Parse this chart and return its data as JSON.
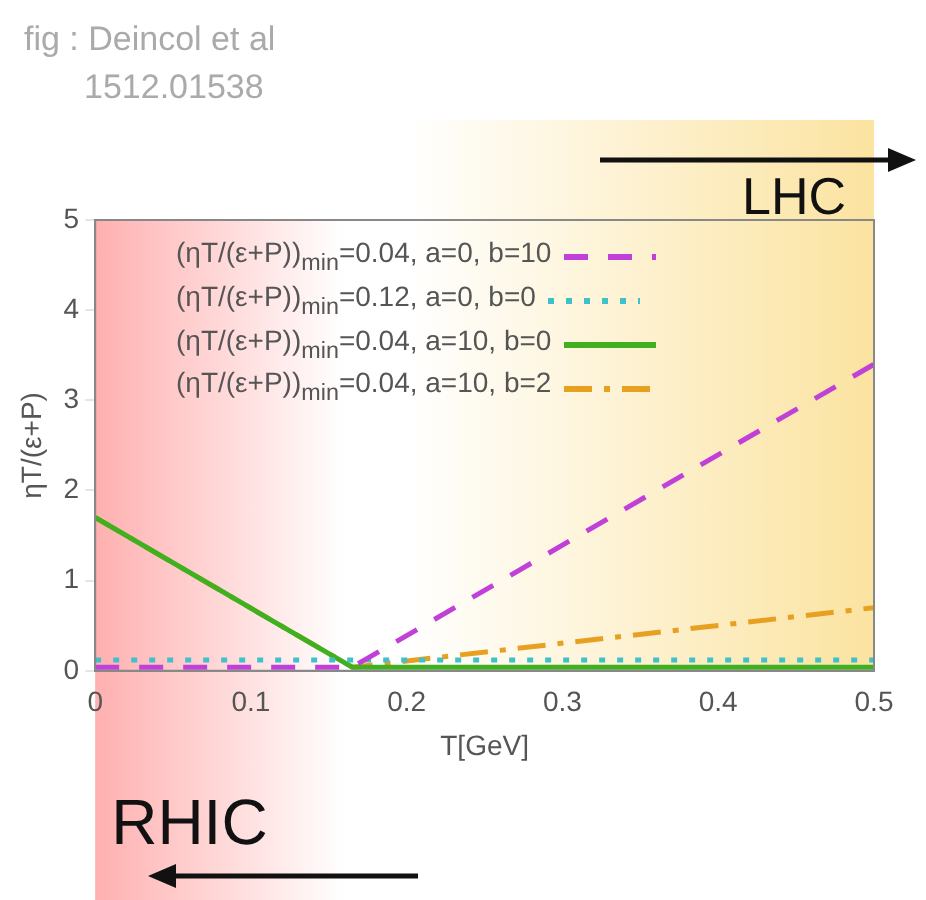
{
  "chart_data": {
    "type": "line",
    "xlabel": "T[GeV]",
    "ylabel": "ηT/(ε+P)",
    "annotations": [
      "fig : Deincol et al",
      "1512.01538"
    ],
    "xlim": [
      0,
      0.5
    ],
    "xticks": [
      0,
      0.1,
      0.2,
      0.3,
      0.4,
      0.5
    ],
    "ylim": [
      0,
      5
    ],
    "yticks": [
      0,
      1,
      2,
      3,
      4,
      5
    ],
    "grid": false,
    "legend": "top",
    "marker": "none",
    "bands": [
      {
        "axis": "x",
        "from": 0,
        "to": 0.16,
        "label": "RHIC",
        "color": "#ffb0b0"
      },
      {
        "axis": "x",
        "from": 0.2,
        "to": 0.5,
        "label": "LHC",
        "color": "#fbe3a0"
      }
    ],
    "series": [
      {
        "name": "(ηT/(ε+P))$_{min}$=0.04, a=0, b=10",
        "color": "#c040d8",
        "line_style": "dashed",
        "x": [
          0,
          0.165,
          0.5
        ],
        "values": [
          0.04,
          0.04,
          3.4
        ]
      },
      {
        "name": "(ηT/(ε+P))$_{min}$=0.12, a=0, b=0",
        "color": "#40c0c8",
        "line_style": "dotted",
        "x": [
          0,
          0.5
        ],
        "values": [
          0.12,
          0.12
        ]
      },
      {
        "name": "(ηT/(ε+P))$_{min}$=0.04, a=10, b=0",
        "color": "#40b020",
        "line_style": "solid",
        "x": [
          0,
          0.165,
          0.5
        ],
        "values": [
          1.7,
          0.04,
          0.04
        ]
      },
      {
        "name": "(ηT/(ε+P))$_{min}$=0.04, a=10, b=2",
        "color": "#e8a020",
        "line_style": "dashdot",
        "x": [
          0,
          0.165,
          0.5
        ],
        "values": [
          1.7,
          0.04,
          0.7
        ]
      }
    ]
  }
}
